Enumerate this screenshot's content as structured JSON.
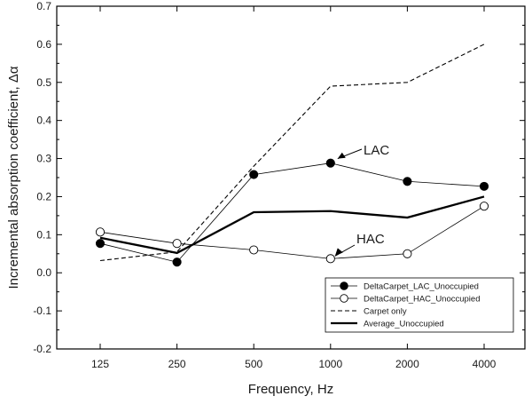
{
  "chart_data": {
    "type": "line",
    "xlabel": "Frequency, Hz",
    "ylabel": "Incremental absorption coefficient, Δα",
    "categories": [
      "125",
      "250",
      "500",
      "1000",
      "2000",
      "4000"
    ],
    "ylim": [
      -0.2,
      0.7
    ],
    "yticks": [
      "-0.2",
      "-0.1",
      "0.0",
      "0.1",
      "0.2",
      "0.3",
      "0.4",
      "0.5",
      "0.6",
      "0.7"
    ],
    "grid": false,
    "legend_position": "bottom-right",
    "series": [
      {
        "name": "DeltaCarpet_LAC_Unoccupied",
        "values": [
          0.077,
          0.028,
          0.258,
          0.288,
          0.24,
          0.227
        ],
        "marker": "filled-circle",
        "line": "thin-solid"
      },
      {
        "name": "DeltaCarpet_HAC_Unoccupied",
        "values": [
          0.107,
          0.077,
          0.06,
          0.037,
          0.05,
          0.175
        ],
        "marker": "open-circle",
        "line": "thin-solid"
      },
      {
        "name": "Carpet only",
        "values": [
          0.032,
          0.055,
          0.28,
          0.49,
          0.5,
          0.6
        ],
        "marker": "none",
        "line": "dashed"
      },
      {
        "name": "Average_Unoccupied",
        "values": [
          0.092,
          0.052,
          0.159,
          0.162,
          0.145,
          0.2
        ],
        "marker": "none",
        "line": "thick-solid"
      }
    ],
    "annotations": [
      {
        "text": "LAC",
        "points_to": {
          "category": "1000",
          "value": 0.288
        }
      },
      {
        "text": "HAC",
        "points_to": {
          "category": "1000",
          "value": 0.037
        }
      }
    ]
  },
  "colors": {
    "axis": "#000000",
    "series": "#000000",
    "marker_fill_open": "#ffffff",
    "background": "#ffffff"
  }
}
